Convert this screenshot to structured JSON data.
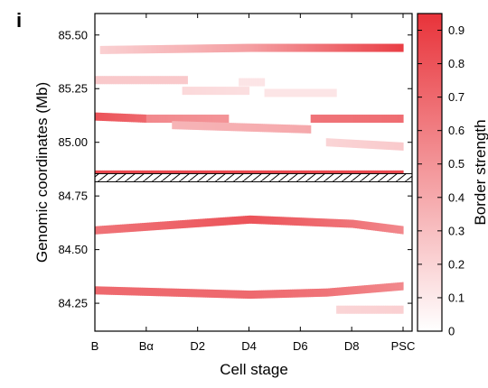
{
  "chart_data": {
    "type": "heatmap",
    "panel_label": "i",
    "xlabel": "Cell stage",
    "ylabel": "Genomic coordinates (Mb)",
    "x_categories": [
      "B",
      "Bα",
      "D2",
      "D4",
      "D6",
      "D8",
      "PSC"
    ],
    "y_ticks": [
      84.25,
      84.5,
      84.75,
      85.0,
      85.25,
      85.5
    ],
    "y_tick_labels": [
      "84.25",
      "84.50",
      "84.75",
      "85.00",
      "85.25",
      "85.50"
    ],
    "ylim": [
      84.12,
      85.6
    ],
    "grid": false,
    "colorbar": {
      "label": "Border strength",
      "ticks": [
        0,
        0.1,
        0.2,
        0.3,
        0.4,
        0.5,
        0.6,
        0.7,
        0.8,
        0.9
      ],
      "tick_labels": [
        "0",
        "0.1",
        "0.2",
        "0.3",
        "0.4",
        "0.5",
        "0.6",
        "0.7",
        "0.8",
        "0.9"
      ],
      "range": [
        0,
        0.95
      ],
      "color_min": "#ffffff",
      "color_max": "#e8333a"
    },
    "bands": [
      {
        "points": [
          [
            0.1,
            85.43,
            0.22
          ],
          [
            3.0,
            85.44,
            0.45
          ],
          [
            6.0,
            85.44,
            0.9
          ]
        ]
      },
      {
        "points": [
          [
            0,
            85.29,
            0.25
          ],
          [
            1.8,
            85.29,
            0.25
          ]
        ]
      },
      {
        "points": [
          [
            2.8,
            85.28,
            0.12
          ],
          [
            3.3,
            85.28,
            0.12
          ]
        ]
      },
      {
        "points": [
          [
            1.7,
            85.24,
            0.18
          ],
          [
            3.0,
            85.24,
            0.15
          ]
        ]
      },
      {
        "points": [
          [
            3.3,
            85.23,
            0.12
          ],
          [
            4.7,
            85.23,
            0.12
          ]
        ]
      },
      {
        "points": [
          [
            0,
            85.12,
            0.8
          ],
          [
            1.0,
            85.11,
            0.7
          ]
        ]
      },
      {
        "points": [
          [
            1.0,
            85.11,
            0.55
          ],
          [
            2.6,
            85.11,
            0.5
          ]
        ]
      },
      {
        "points": [
          [
            1.5,
            85.08,
            0.35
          ],
          [
            4.2,
            85.06,
            0.4
          ]
        ]
      },
      {
        "points": [
          [
            4.2,
            85.11,
            0.65
          ],
          [
            6.0,
            85.11,
            0.68
          ]
        ]
      },
      {
        "points": [
          [
            4.5,
            85.0,
            0.2
          ],
          [
            6.0,
            84.98,
            0.25
          ]
        ]
      },
      {
        "points": [
          [
            0,
            84.85,
            0.85
          ],
          [
            6.0,
            84.85,
            0.85
          ]
        ]
      },
      {
        "points": [
          [
            0,
            84.59,
            0.65
          ],
          [
            3.0,
            84.64,
            0.8
          ],
          [
            5.0,
            84.62,
            0.65
          ],
          [
            6.0,
            84.59,
            0.55
          ]
        ]
      },
      {
        "points": [
          [
            0,
            84.31,
            0.7
          ],
          [
            3.0,
            84.29,
            0.7
          ],
          [
            4.5,
            84.3,
            0.65
          ],
          [
            6.0,
            84.33,
            0.55
          ]
        ]
      },
      {
        "points": [
          [
            4.7,
            84.22,
            0.2
          ],
          [
            6.0,
            84.22,
            0.22
          ]
        ]
      }
    ],
    "hatched_coordinate": 84.835
  }
}
